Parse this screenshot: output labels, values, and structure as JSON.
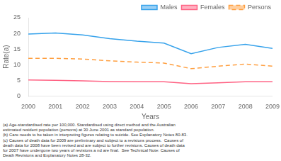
{
  "chart_data": {
    "type": "line",
    "x": [
      2000,
      2001,
      2002,
      2003,
      2004,
      2005,
      2006,
      2007,
      2008,
      2009
    ],
    "xlim": [
      2000,
      2009
    ],
    "xticks": [
      2000,
      2001,
      2002,
      2003,
      2004,
      2005,
      2006,
      2007,
      2008,
      2009
    ],
    "ylim": [
      0,
      25
    ],
    "yticks": [
      0,
      5,
      10,
      15,
      20,
      25
    ],
    "xlabel": "Years",
    "ylabel": "Rate(a)",
    "series": [
      {
        "name": "Males",
        "values": [
          19.8,
          20.1,
          19.5,
          18.3,
          17.5,
          16.9,
          13.5,
          15.5,
          16.5,
          15.2
        ],
        "line_style": "solid"
      },
      {
        "name": "Females",
        "values": [
          5.1,
          5.0,
          4.8,
          4.6,
          4.5,
          4.5,
          3.9,
          4.2,
          4.5,
          4.5
        ],
        "line_style": "solid"
      },
      {
        "name": "Persons",
        "values": [
          12.0,
          12.0,
          11.8,
          11.2,
          10.8,
          10.5,
          8.7,
          9.5,
          10.2,
          9.5
        ],
        "line_style": "dashed"
      }
    ],
    "legend": "upper right",
    "grid": false,
    "marker": "none",
    "annotations": [
      "(a) Age-standardised rate per 100,000. Standardised using direct method and the Australian",
      "estimated resident population (persons) at 30 June 2001 as standard population.",
      "(b) Care needs to be taken in interpreting figures relating to suicide. See Explanatory Notes 80-83.",
      "(c) Causes of death data for 2009 are preliminary and subject to a revisions process.  Causes of",
      "death data for 2008 have been revised and are subject to further revisions. Causes of death data",
      "for 2007 have undergone two years of revisions a nd are final.  See Technical Note: Causes of",
      "Death Revisions and Explanatory Notes 28-32."
    ]
  }
}
